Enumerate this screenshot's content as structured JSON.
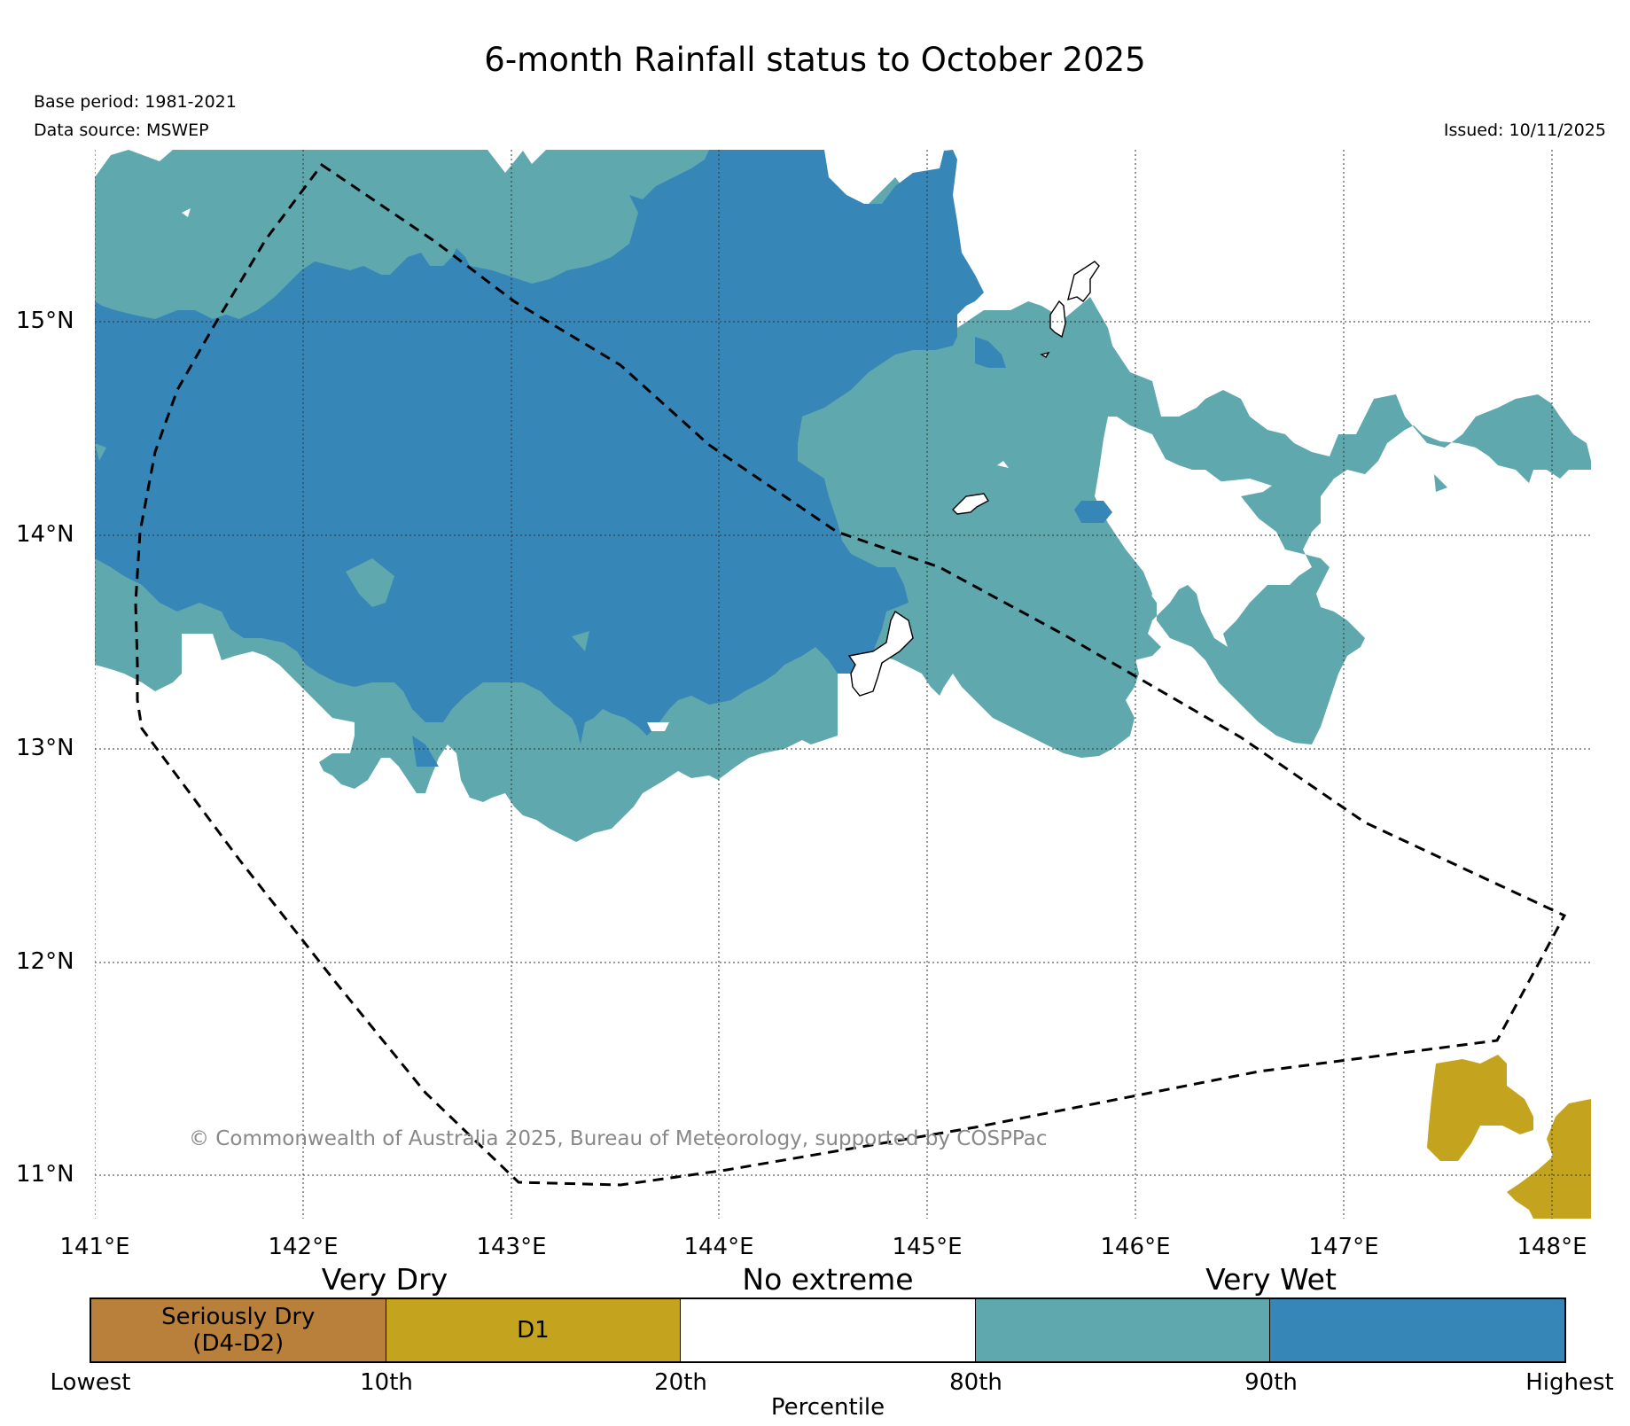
{
  "title": "6-month Rainfall status to October 2025",
  "meta": {
    "base_period": "Base period: 1981-2021",
    "data_source": "Data source: MSWEP",
    "issued": "Issued: 10/11/2025"
  },
  "copyright": "© Commonwealth of Australia 2025, Bureau of Meteorology, supported by COSPPac",
  "axes": {
    "longitude_ticks": [
      "141°E",
      "142°E",
      "143°E",
      "144°E",
      "145°E",
      "146°E",
      "147°E",
      "148°E"
    ],
    "latitude_ticks": [
      "15°N",
      "14°N",
      "13°N",
      "12°N",
      "11°N"
    ]
  },
  "legend": {
    "categories": [
      "Very Dry",
      "No extreme",
      "Very Wet"
    ],
    "boxes": [
      {
        "label": "Seriously Dry\n(D4-D2)",
        "color": "#b8803a"
      },
      {
        "label": "D1",
        "color": "#c4a41e"
      },
      {
        "label": "",
        "color": "#ffffff"
      },
      {
        "label": "",
        "color": "#5ea8ae"
      },
      {
        "label": "",
        "color": "#3786b8"
      }
    ],
    "ticks": [
      "Lowest",
      "10th",
      "20th",
      "80th",
      "90th",
      "Highest"
    ],
    "xlabel": "Percentile"
  },
  "colors": {
    "very_much_above": "#3786b8",
    "above": "#5ea8ae",
    "d1": "#c4a41e",
    "seriously_dry": "#b8803a"
  }
}
